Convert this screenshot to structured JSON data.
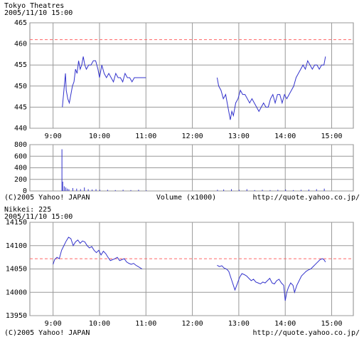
{
  "chart_data": [
    {
      "type": "line",
      "title": "Tokyo  Theatres",
      "subtitle": "2005/11/10 15:00",
      "color": "#3333cc",
      "reference": 461,
      "reference_color": "#ff6666",
      "xlim": [
        510,
        928
      ],
      "ylim": [
        440,
        465
      ],
      "xticks": [
        {
          "value": 540,
          "label": "9:00"
        },
        {
          "value": 600,
          "label": "10:00"
        },
        {
          "value": 660,
          "label": "11:00"
        },
        {
          "value": 720,
          "label": "12:00"
        },
        {
          "value": 780,
          "label": "13:00"
        },
        {
          "value": 840,
          "label": "14:00"
        },
        {
          "value": 900,
          "label": "15:00"
        }
      ],
      "yticks": [
        440,
        445,
        450,
        455,
        460,
        465
      ],
      "x": [
        552,
        554,
        555,
        556,
        557,
        559,
        561,
        563,
        565,
        567,
        569,
        571,
        573,
        575,
        577,
        579,
        581,
        583,
        586,
        589,
        592,
        595,
        598,
        600,
        603,
        606,
        609,
        612,
        615,
        618,
        621,
        624,
        627,
        630,
        633,
        636,
        639,
        642,
        645,
        648,
        651,
        655,
        660,
        700,
        752,
        754,
        757,
        760,
        763,
        765,
        767,
        769,
        771,
        773,
        776,
        779,
        782,
        785,
        788,
        791,
        794,
        797,
        800,
        803,
        806,
        809,
        812,
        815,
        818,
        821,
        824,
        827,
        830,
        833,
        836,
        839,
        842,
        845,
        848,
        851,
        854,
        857,
        860,
        863,
        866,
        869,
        872,
        875,
        878,
        881,
        884,
        887,
        890,
        892
      ],
      "values": [
        445,
        449,
        451,
        453,
        449,
        447,
        446,
        448,
        450,
        451,
        454,
        453,
        456,
        454,
        455,
        457,
        455,
        454,
        455,
        455,
        456,
        456,
        454,
        452,
        455,
        453,
        452,
        453,
        452,
        451,
        453,
        452,
        452,
        451,
        453,
        452,
        452,
        451,
        452,
        452,
        452,
        452,
        452,
        null,
        452,
        450,
        449,
        447,
        448,
        446,
        444,
        442,
        444,
        443,
        446,
        447,
        449,
        448,
        448,
        447,
        446,
        447,
        446,
        445,
        444,
        445,
        446,
        445,
        445,
        447,
        448,
        446,
        448,
        448,
        446,
        448,
        447,
        448,
        449,
        450,
        452,
        453,
        454,
        455,
        454,
        456,
        455,
        454,
        455,
        455,
        454,
        455,
        455,
        457
      ]
    },
    {
      "type": "bar",
      "color": "#3333cc",
      "xlim": [
        510,
        928
      ],
      "ylim": [
        0,
        800
      ],
      "xticks": [
        540,
        600,
        660,
        720,
        780,
        840,
        900
      ],
      "yticks": [
        0,
        200,
        400,
        600,
        800
      ],
      "x": [
        551,
        552,
        554,
        556,
        558,
        560,
        565,
        570,
        575,
        580,
        585,
        590,
        595,
        600,
        610,
        620,
        630,
        640,
        650,
        660,
        752,
        760,
        770,
        780,
        790,
        800,
        810,
        820,
        830,
        840,
        850,
        860,
        870,
        880,
        890
      ],
      "values": [
        720,
        160,
        80,
        60,
        40,
        30,
        50,
        40,
        30,
        60,
        30,
        25,
        30,
        20,
        20,
        15,
        20,
        15,
        20,
        10,
        20,
        25,
        30,
        20,
        30,
        15,
        20,
        15,
        20,
        25,
        15,
        20,
        25,
        30,
        40
      ],
      "copyright": "(C)2005 Yahoo! JAPAN",
      "xlabel": "Volume (x1000)",
      "source": "http://quote.yahoo.co.jp/"
    },
    {
      "type": "line",
      "title": "Nikkei: 225",
      "subtitle": "2005/11/10 15:00",
      "color": "#3333cc",
      "reference": 14072,
      "reference_color": "#ff6666",
      "xlim": [
        510,
        928
      ],
      "ylim": [
        13950,
        14150
      ],
      "xticks": [
        {
          "value": 540,
          "label": "9:00"
        },
        {
          "value": 600,
          "label": "10:00"
        },
        {
          "value": 660,
          "label": "11:00"
        },
        {
          "value": 720,
          "label": "12:00"
        },
        {
          "value": 780,
          "label": "13:00"
        },
        {
          "value": 840,
          "label": "14:00"
        },
        {
          "value": 900,
          "label": "15:00"
        }
      ],
      "yticks": [
        13950,
        14000,
        14050,
        14100,
        14150
      ],
      "x": [
        540,
        542,
        545,
        548,
        551,
        554,
        557,
        560,
        563,
        566,
        569,
        572,
        575,
        578,
        581,
        584,
        587,
        590,
        593,
        596,
        599,
        602,
        605,
        608,
        611,
        614,
        617,
        620,
        623,
        626,
        629,
        632,
        635,
        638,
        641,
        644,
        647,
        650,
        653,
        655,
        700,
        752,
        755,
        758,
        761,
        764,
        767,
        770,
        773,
        775,
        778,
        781,
        784,
        787,
        790,
        793,
        796,
        799,
        802,
        805,
        808,
        811,
        814,
        817,
        820,
        823,
        826,
        829,
        832,
        835,
        838,
        840,
        842,
        844,
        847,
        850,
        852,
        855,
        858,
        861,
        864,
        867,
        870,
        873,
        876,
        879,
        882,
        885,
        888,
        890,
        892
      ],
      "values": [
        14060,
        14070,
        14075,
        14072,
        14090,
        14100,
        14110,
        14118,
        14115,
        14100,
        14108,
        14112,
        14105,
        14110,
        14108,
        14100,
        14095,
        14098,
        14090,
        14085,
        14090,
        14080,
        14088,
        14083,
        14075,
        14068,
        14070,
        14072,
        14075,
        14068,
        14070,
        14072,
        14065,
        14062,
        14060,
        14062,
        14058,
        14055,
        14052,
        14050,
        null,
        14058,
        14055,
        14057,
        14052,
        14050,
        14045,
        14030,
        14015,
        14005,
        14018,
        14032,
        14040,
        14038,
        14035,
        14030,
        14025,
        14028,
        14022,
        14020,
        14018,
        14022,
        14020,
        14025,
        14030,
        14020,
        14018,
        14025,
        14028,
        14020,
        14015,
        13982,
        14000,
        14010,
        14020,
        14015,
        14000,
        14015,
        14025,
        14035,
        14040,
        14045,
        14048,
        14050,
        14055,
        14060,
        14065,
        14070,
        14072,
        14070,
        14065
      ],
      "copyright": "(C)2005 Yahoo! JAPAN",
      "source": "http://quote.yahoo.co.jp/"
    }
  ]
}
